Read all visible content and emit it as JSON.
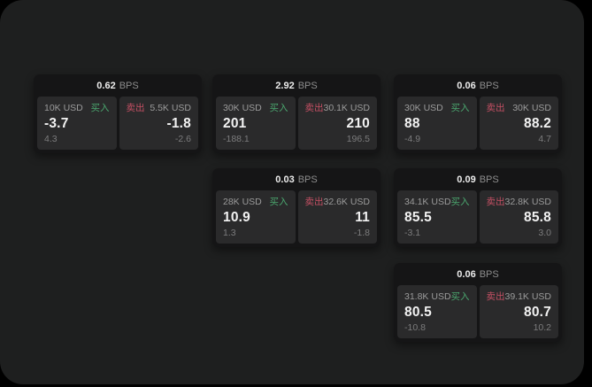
{
  "theme": {
    "background": "#000000",
    "panel": "#1e1f1f",
    "card": "#151516",
    "tile": "#2a2a2b",
    "buy_color": "#4ba76f",
    "sell_color": "#c55064"
  },
  "labels": {
    "bps_unit": "BPS",
    "buy": "买入",
    "sell": "卖出"
  },
  "cards": [
    {
      "row": 1,
      "col": 1,
      "bps": "0.62",
      "buy": {
        "notional": "10K USD",
        "price": "-3.7",
        "delta": "4.3"
      },
      "sell": {
        "notional": "5.5K USD",
        "price": "-1.8",
        "delta": "-2.6"
      }
    },
    {
      "row": 1,
      "col": 2,
      "bps": "2.92",
      "buy": {
        "notional": "30K USD",
        "price": "201",
        "delta": "-188.1"
      },
      "sell": {
        "notional": "30.1K USD",
        "price": "210",
        "delta": "196.5"
      }
    },
    {
      "row": 1,
      "col": 3,
      "bps": "0.06",
      "buy": {
        "notional": "30K USD",
        "price": "88",
        "delta": "-4.9"
      },
      "sell": {
        "notional": "30K USD",
        "price": "88.2",
        "delta": "4.7"
      }
    },
    {
      "row": 2,
      "col": 2,
      "bps": "0.03",
      "buy": {
        "notional": "28K USD",
        "price": "10.9",
        "delta": "1.3"
      },
      "sell": {
        "notional": "32.6K USD",
        "price": "11",
        "delta": "-1.8"
      }
    },
    {
      "row": 2,
      "col": 3,
      "bps": "0.09",
      "buy": {
        "notional": "34.1K USD",
        "price": "85.5",
        "delta": "-3.1"
      },
      "sell": {
        "notional": "32.8K USD",
        "price": "85.8",
        "delta": "3.0"
      }
    },
    {
      "row": 3,
      "col": 3,
      "bps": "0.06",
      "buy": {
        "notional": "31.8K USD",
        "price": "80.5",
        "delta": "-10.8"
      },
      "sell": {
        "notional": "39.1K USD",
        "price": "80.7",
        "delta": "10.2"
      }
    }
  ]
}
